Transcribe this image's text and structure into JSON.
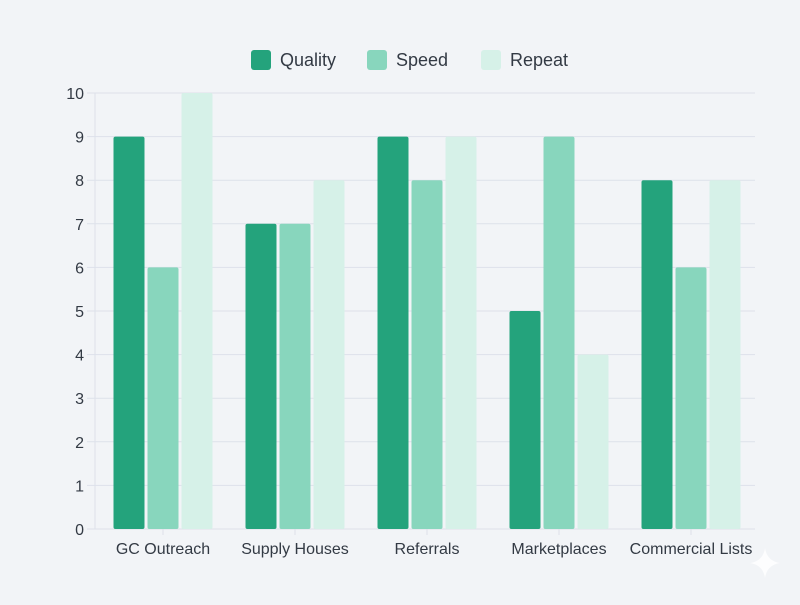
{
  "chart_data": {
    "type": "bar",
    "title": "",
    "xlabel": "",
    "ylabel": "",
    "categories": [
      "GC Outreach",
      "Supply Houses",
      "Referrals",
      "Marketplaces",
      "Commercial Lists"
    ],
    "series": [
      {
        "name": "Quality",
        "values": [
          9,
          7,
          9,
          5,
          8
        ],
        "color": "#24a37c"
      },
      {
        "name": "Speed",
        "values": [
          6,
          7,
          8,
          9,
          6
        ],
        "color": "#88d6bd"
      },
      {
        "name": "Repeat",
        "values": [
          10,
          8,
          9,
          4,
          8
        ],
        "color": "#d6f1e8"
      }
    ],
    "ylim": [
      0,
      10
    ],
    "yticks": [
      "0",
      "1",
      "2",
      "3",
      "4",
      "5",
      "6",
      "7",
      "8",
      "9",
      "10"
    ],
    "grid": true,
    "legend": "top"
  }
}
